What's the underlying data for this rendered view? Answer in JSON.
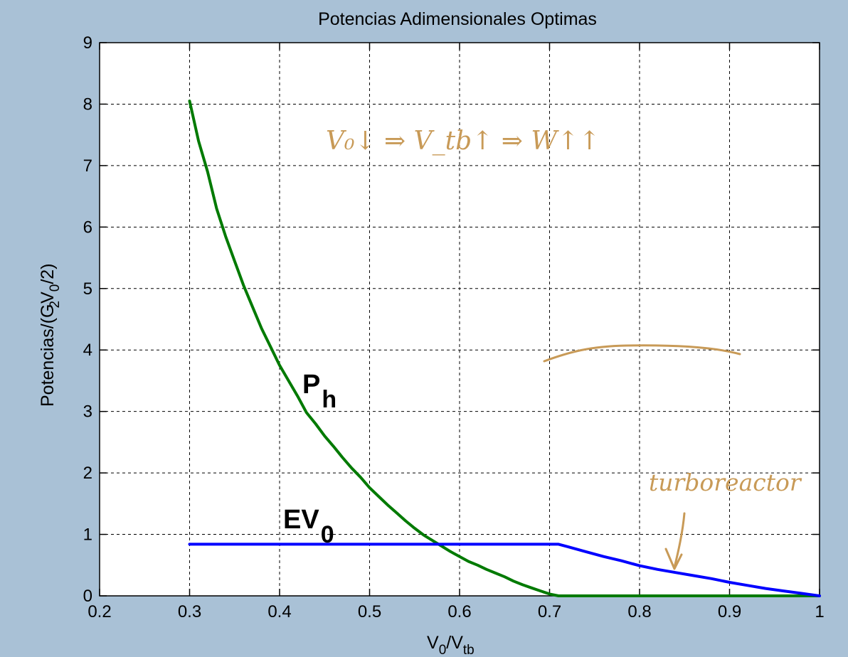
{
  "chart_data": {
    "type": "line",
    "title": "Potencias Adimensionales Optimas",
    "xlabel": "V0/Vtb",
    "xlabel_parts": {
      "main": "V",
      "sub": "0",
      "mid": "/V",
      "sub2": "tb"
    },
    "ylabel": "Potencias/(GV0/2)",
    "ylabel_parts": {
      "pre": "Potencias/(G",
      "sub": "2",
      "mid": "V",
      "sub2": "0",
      "post": "/2)"
    },
    "xlim": [
      0.2,
      1.0
    ],
    "ylim": [
      0,
      9
    ],
    "xticks": [
      "0.2",
      "0.3",
      "0.4",
      "0.5",
      "0.6",
      "0.7",
      "0.8",
      "0.9",
      "1"
    ],
    "yticks": [
      "0",
      "1",
      "2",
      "3",
      "4",
      "5",
      "6",
      "7",
      "8",
      "9"
    ],
    "grid": true,
    "series": [
      {
        "name": "Ph",
        "label_main": "P",
        "label_sub": "h",
        "color": "#007a00",
        "x": [
          0.3,
          0.31,
          0.32,
          0.33,
          0.34,
          0.35,
          0.36,
          0.37,
          0.38,
          0.39,
          0.4,
          0.41,
          0.42,
          0.43,
          0.44,
          0.45,
          0.46,
          0.47,
          0.48,
          0.49,
          0.5,
          0.51,
          0.52,
          0.53,
          0.54,
          0.55,
          0.56,
          0.57,
          0.58,
          0.59,
          0.6,
          0.61,
          0.62,
          0.63,
          0.64,
          0.65,
          0.66,
          0.67,
          0.68,
          0.69,
          0.7,
          0.71,
          0.72,
          0.8,
          0.9,
          1.0
        ],
        "y": [
          8.05,
          7.4,
          6.9,
          6.3,
          5.85,
          5.45,
          5.05,
          4.7,
          4.35,
          4.05,
          3.75,
          3.5,
          3.25,
          2.98,
          2.8,
          2.6,
          2.43,
          2.25,
          2.08,
          1.93,
          1.76,
          1.62,
          1.48,
          1.35,
          1.22,
          1.1,
          0.99,
          0.9,
          0.81,
          0.72,
          0.64,
          0.56,
          0.5,
          0.43,
          0.37,
          0.31,
          0.24,
          0.18,
          0.13,
          0.08,
          0.03,
          0.0,
          0.0,
          0.0,
          0.0,
          0.0
        ]
      },
      {
        "name": "EV0",
        "label_main": "EV",
        "label_sub": "0",
        "color": "#0000ff",
        "x": [
          0.3,
          0.4,
          0.5,
          0.6,
          0.71,
          0.72,
          0.74,
          0.76,
          0.78,
          0.8,
          0.82,
          0.84,
          0.86,
          0.88,
          0.9,
          0.92,
          0.94,
          0.96,
          0.98,
          1.0
        ],
        "y": [
          0.84,
          0.84,
          0.84,
          0.84,
          0.84,
          0.8,
          0.72,
          0.64,
          0.57,
          0.49,
          0.43,
          0.38,
          0.33,
          0.28,
          0.22,
          0.17,
          0.12,
          0.08,
          0.04,
          0.0
        ]
      }
    ],
    "annotations": {
      "handwritten_top": "V₀↓ ⇒ V_tb↑ ⇒ W↑↑",
      "handwritten_right": "turboreactor",
      "handwritten_colour": "#c89a57"
    }
  }
}
